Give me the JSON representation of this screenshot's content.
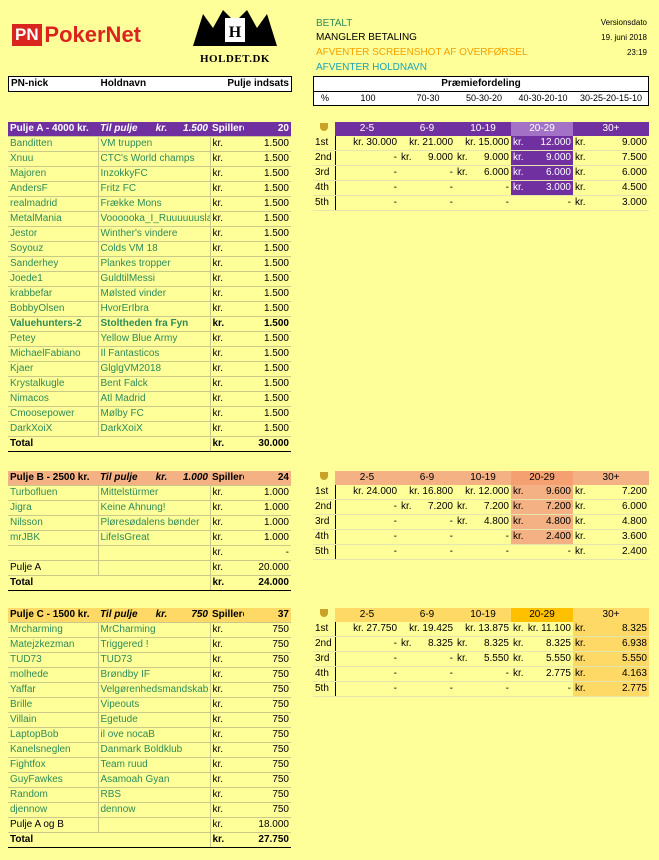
{
  "logo": {
    "pn": "PN",
    "pokernet": "PokerNet",
    "holdet": "HOLDET.DK"
  },
  "legend": {
    "betalt": "BETALT",
    "mangler": "MANGLER BETALING",
    "afventer_screenshot": "AFVENTER SCREENSHOT AF OVERFØRSEL",
    "afventer_holdnavn": "AFVENTER HOLDNAVN",
    "version_label": "Versionsdato",
    "version_date": "19. juni 2018",
    "version_time": "23:19"
  },
  "colors": {
    "green": "#2e8b57",
    "orange_text": "#f4a000",
    "teal": "#17a2b8",
    "purple": "#7030a0",
    "orange": "#f4b183",
    "gold": "#ffd966"
  },
  "header": {
    "nick": "PN-nick",
    "holdnavn": "Holdnavn",
    "pulje_indsats": "Pulje indsats",
    "praemie": "Præmiefordeling",
    "pct": "%",
    "dist": [
      "100",
      "70-30",
      "50-30-20",
      "40-30-20-10",
      "30-25-20-15-10"
    ]
  },
  "pulje_a": {
    "title": "Pulje A - 4000 kr.",
    "til_pulje": "Til pulje",
    "kr": "kr.",
    "pulje_amount": "1.500",
    "spillere_label": "Spillere:",
    "spillere": "20",
    "rows": [
      [
        "Banditten",
        "VM truppen",
        "kr.",
        "1.500"
      ],
      [
        "Xnuu",
        "CTC's World champs",
        "kr.",
        "1.500"
      ],
      [
        "Majoren",
        "InzokkyFC",
        "kr.",
        "1.500"
      ],
      [
        "AndersF",
        "Fritz FC",
        "kr.",
        "1.500"
      ],
      [
        "realmadrid",
        "Frække Mons",
        "kr.",
        "1.500"
      ],
      [
        "MetalMania",
        "Voooooka_I_Ruuuuuuslan",
        "kr.",
        "1.500"
      ],
      [
        "Jestor",
        "Winther's vindere",
        "kr.",
        "1.500"
      ],
      [
        "Soyouz",
        "Colds VM 18",
        "kr.",
        "1.500"
      ],
      [
        "Sanderhey",
        "Plankes tropper",
        "kr.",
        "1.500"
      ],
      [
        "Joede1",
        "GuldtilMessi",
        "kr.",
        "1.500"
      ],
      [
        "krabbefar",
        "Mølsted vinder",
        "kr.",
        "1.500"
      ],
      [
        "BobbyOlsen",
        "HvorErIbra",
        "kr.",
        "1.500"
      ],
      [
        "Valuehunters-2",
        "Stoltheden fra Fyn",
        "kr.",
        "1.500"
      ],
      [
        "Petey",
        "Yellow Blue Army",
        "kr.",
        "1.500"
      ],
      [
        "MichaelFabiano",
        "Il Fantasticos",
        "kr.",
        "1.500"
      ],
      [
        "Kjaer",
        "GlglgVM2018",
        "kr.",
        "1.500"
      ],
      [
        "Krystalkugle",
        "Bent Falck",
        "kr.",
        "1.500"
      ],
      [
        "Nimacos",
        "Atl Madrid",
        "kr.",
        "1.500"
      ],
      [
        "Cmoosepower",
        "Mølby FC",
        "kr.",
        "1.500"
      ],
      [
        "DarkXoiX",
        "DarkXoiX",
        "kr.",
        "1.500"
      ]
    ],
    "total_label": "Total",
    "total_kr": "kr.",
    "total": "30.000",
    "prize_header": [
      "2-5",
      "6-9",
      "10-19",
      "20-29",
      "30+"
    ],
    "prizes": [
      [
        "1st",
        "kr. 30.000",
        "kr. 21.000",
        "kr. 15.000",
        "12.000",
        "9.000"
      ],
      [
        "2nd",
        "-",
        "9.000",
        "9.000",
        "9.000",
        "7.500"
      ],
      [
        "3rd",
        "-",
        "-",
        "6.000",
        "6.000",
        "6.000"
      ],
      [
        "4th",
        "-",
        "-",
        "-",
        "3.000",
        "4.500"
      ],
      [
        "5th",
        "-",
        "-",
        "-",
        "-",
        "3.000"
      ]
    ]
  },
  "pulje_b": {
    "title": "Pulje B - 2500 kr.",
    "til_pulje": "Til pulje",
    "kr": "kr.",
    "pulje_amount": "1.000",
    "spillere_label": "Spillere:",
    "spillere": "24",
    "rows": [
      [
        "Turbofluen",
        "Mittelstürmer",
        "kr.",
        "1.000"
      ],
      [
        "Jigra",
        "Keine Ahnung!",
        "kr.",
        "1.000"
      ],
      [
        "Nilsson",
        "Pløresødalens bønder",
        "kr.",
        "1.000"
      ],
      [
        "mrJBK",
        "LifeIsGreat",
        "kr.",
        "1.000"
      ]
    ],
    "empty_kr": "kr.",
    "empty_val": "-",
    "pulje_a_label": "Pulje A",
    "pulje_a_kr": "kr.",
    "pulje_a_val": "20.000",
    "total_label": "Total",
    "total_kr": "kr.",
    "total": "24.000",
    "prize_header": [
      "2-5",
      "6-9",
      "10-19",
      "20-29",
      "30+"
    ],
    "prizes": [
      [
        "1st",
        "kr. 24.000",
        "kr. 16.800",
        "kr. 12.000",
        "9.600",
        "7.200"
      ],
      [
        "2nd",
        "-",
        "7.200",
        "7.200",
        "7.200",
        "6.000"
      ],
      [
        "3rd",
        "-",
        "-",
        "4.800",
        "4.800",
        "4.800"
      ],
      [
        "4th",
        "-",
        "-",
        "-",
        "2.400",
        "3.600"
      ],
      [
        "5th",
        "-",
        "-",
        "-",
        "-",
        "2.400"
      ]
    ]
  },
  "pulje_c": {
    "title": "Pulje C - 1500 kr.",
    "til_pulje": "Til pulje",
    "kr": "kr.",
    "pulje_amount": "750",
    "spillere_label": "Spillere:",
    "spillere": "37",
    "rows": [
      [
        "Mrcharming",
        "MrCharming",
        "kr.",
        "750"
      ],
      [
        "Matejzkezman",
        "Triggered !",
        "kr.",
        "750"
      ],
      [
        "TUD73",
        "TUD73",
        "kr.",
        "750"
      ],
      [
        "molhede",
        "Brøndby IF",
        "kr.",
        "750"
      ],
      [
        "Yaffar",
        "Velgørenhedsmandskab",
        "kr.",
        "750"
      ],
      [
        "Brille",
        "Vipeouts",
        "kr.",
        "750"
      ],
      [
        "Villain",
        "Egetude",
        "kr.",
        "750"
      ],
      [
        "LaptopBob",
        "il ove nocaB",
        "kr.",
        "750"
      ],
      [
        "Kanelsneglen",
        "Danmark Boldklub",
        "kr.",
        "750"
      ],
      [
        "Fightfox",
        "Team ruud",
        "kr.",
        "750"
      ],
      [
        "GuyFawkes",
        "Asamoah Gyan",
        "kr.",
        "750"
      ],
      [
        "Random",
        "RBS",
        "kr.",
        "750"
      ],
      [
        "djennow",
        "dennow",
        "kr.",
        "750"
      ]
    ],
    "pulje_ab_label": "Pulje A og B",
    "pulje_ab_kr": "kr.",
    "pulje_ab_val": "18.000",
    "total_label": "Total",
    "total_kr": "kr.",
    "total": "27.750",
    "prize_header": [
      "2-5",
      "6-9",
      "10-19",
      "20-29",
      "30+"
    ],
    "prizes": [
      [
        "1st",
        "kr. 27.750",
        "kr. 19.425",
        "kr. 13.875",
        "kr. 11.100",
        "8.325"
      ],
      [
        "2nd",
        "-",
        "8.325",
        "8.325",
        "8.325",
        "6.938"
      ],
      [
        "3rd",
        "-",
        "-",
        "5.550",
        "5.550",
        "5.550"
      ],
      [
        "4th",
        "-",
        "-",
        "-",
        "2.775",
        "4.163"
      ],
      [
        "5th",
        "-",
        "-",
        "-",
        "-",
        "2.775"
      ]
    ]
  }
}
